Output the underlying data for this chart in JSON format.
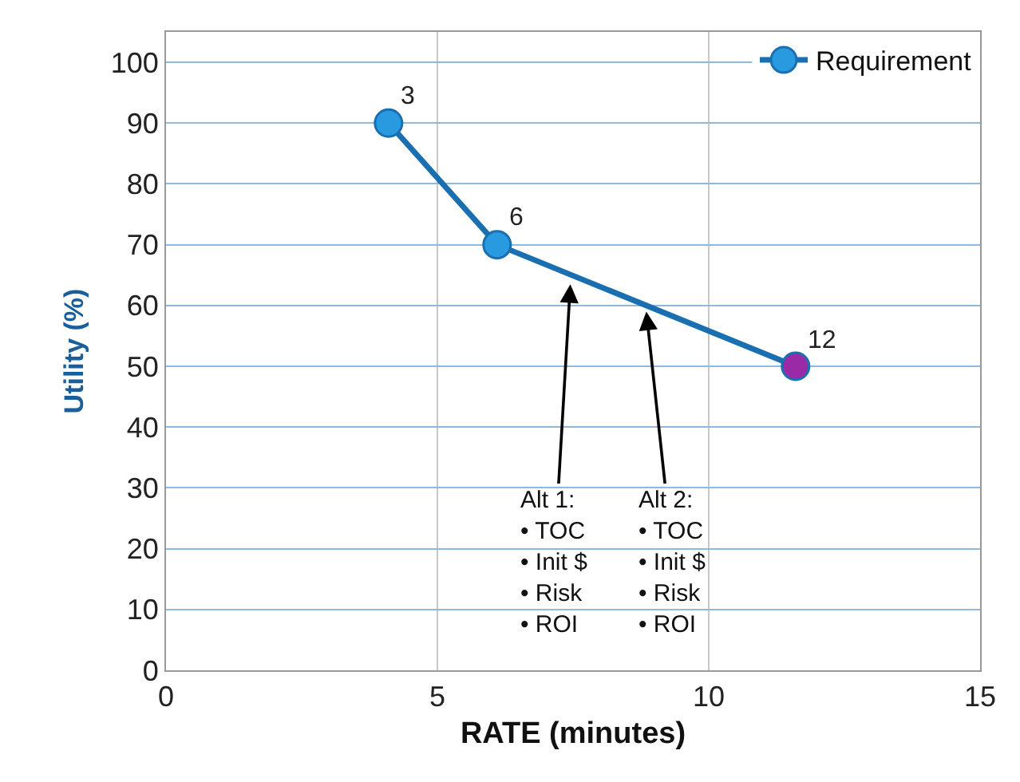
{
  "chart_data": {
    "type": "line",
    "xlabel": "RATE (minutes)",
    "ylabel": "Utility (%)",
    "x": [
      4.1,
      6.1,
      11.6
    ],
    "series": [
      {
        "name": "Requirement",
        "color": "#1a6fb0",
        "colors": [
          "#2a9ae0",
          "#2a9ae0",
          "#9b2aa6"
        ],
        "values": [
          90,
          70,
          50
        ]
      }
    ],
    "xlim": [
      0,
      15
    ],
    "xticks": [
      0,
      5,
      10,
      15
    ],
    "ylim": [
      0,
      105
    ],
    "yticks": [
      0,
      10,
      20,
      30,
      40,
      50,
      60,
      70,
      80,
      90,
      100
    ],
    "grid": true,
    "legend": "top right",
    "marker": "circle",
    "line_style": "solid",
    "annotations": [
      {
        "text": "3",
        "x": 4.1,
        "y": 90
      },
      {
        "text": "6",
        "x": 6.1,
        "y": 70
      },
      {
        "text": "12",
        "x": 11.6,
        "y": 50
      },
      {
        "text": "Alt 1:\n• TOC\n• Init $\n• Risk\n• ROI",
        "x": 7.45,
        "y": 63.5
      },
      {
        "text": "Alt 2:\n• TOC\n• Init $\n• Risk\n• ROI",
        "x": 8.85,
        "y": 59
      }
    ]
  }
}
